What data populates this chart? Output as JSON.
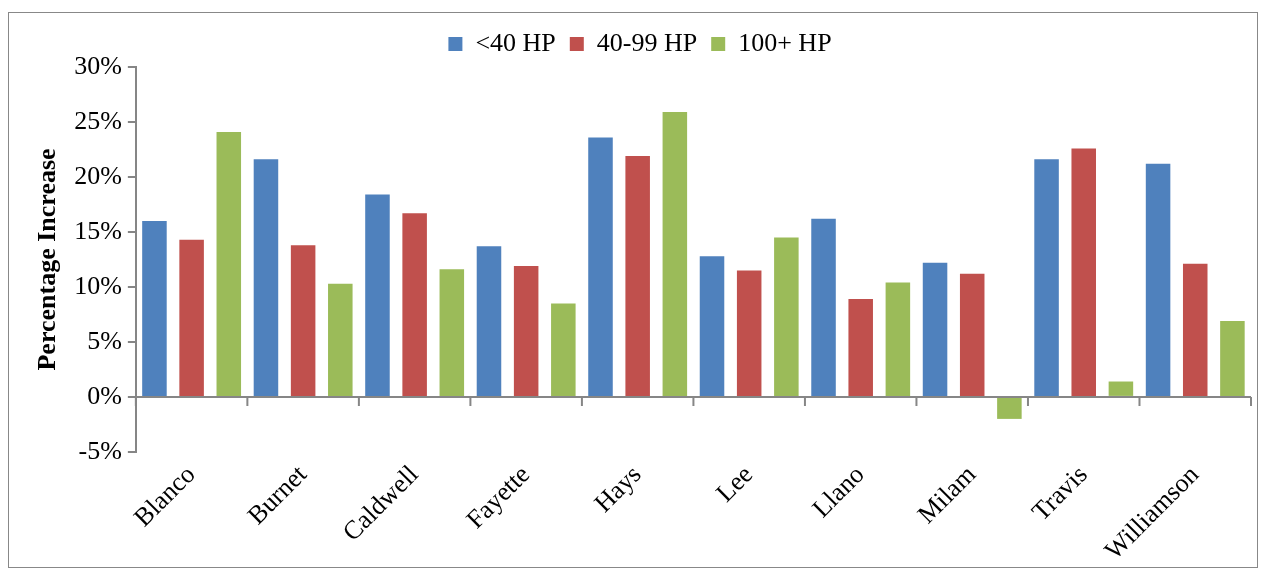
{
  "chart_data": {
    "type": "bar",
    "categories": [
      "Blanco",
      "Burnet",
      "Caldwell",
      "Fayette",
      "Hays",
      "Lee",
      "Llano",
      "Milam",
      "Travis",
      "Williamson"
    ],
    "series": [
      {
        "name": "<40 HP",
        "color": "#4f81bd",
        "values": [
          16.0,
          21.6,
          18.4,
          13.7,
          23.6,
          12.8,
          16.2,
          12.2,
          21.6,
          21.2
        ]
      },
      {
        "name": "40-99 HP",
        "color": "#c0504d",
        "values": [
          14.3,
          13.8,
          16.7,
          11.9,
          21.9,
          11.5,
          8.9,
          11.2,
          22.6,
          12.1
        ]
      },
      {
        "name": "100+ HP",
        "color": "#9bbb59",
        "values": [
          24.1,
          10.3,
          11.6,
          8.5,
          25.9,
          14.5,
          10.4,
          -2.0,
          1.4,
          6.9
        ]
      }
    ],
    "ylabel": "Percentage Increase",
    "ylim": [
      -5,
      30
    ],
    "yticks": [
      {
        "value": -5,
        "label": "-5%"
      },
      {
        "value": 0,
        "label": "0%"
      },
      {
        "value": 5,
        "label": "5%"
      },
      {
        "value": 10,
        "label": "10%"
      },
      {
        "value": 15,
        "label": "15%"
      },
      {
        "value": 20,
        "label": "20%"
      },
      {
        "value": 25,
        "label": "25%"
      },
      {
        "value": 30,
        "label": "30%"
      }
    ],
    "legend": "top"
  }
}
